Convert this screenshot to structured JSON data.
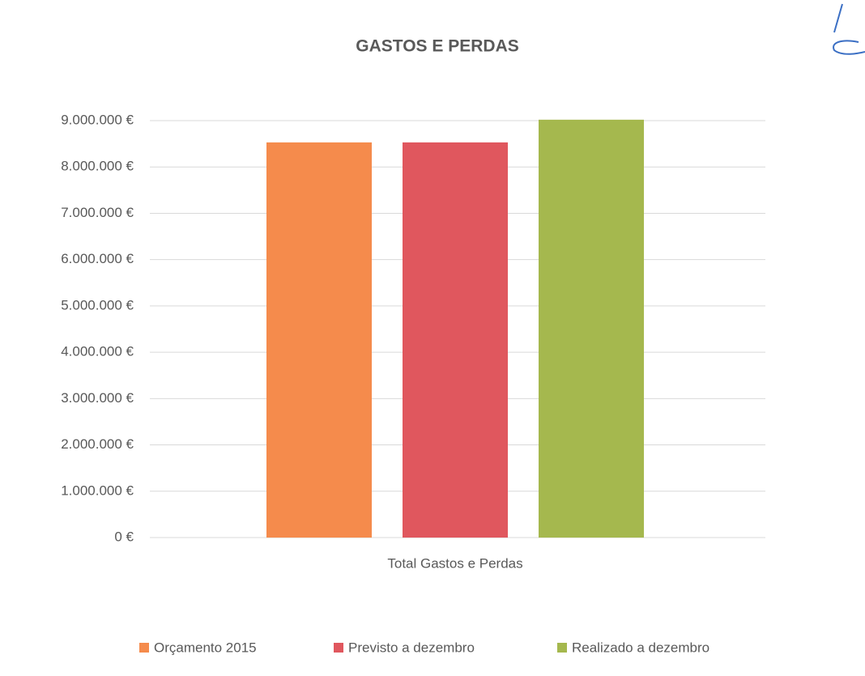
{
  "chart_data": {
    "type": "bar",
    "title": "GASTOS E PERDAS",
    "categories": [
      "Total Gastos e Perdas"
    ],
    "series": [
      {
        "name": "Orçamento 2015",
        "color": "#f58b4c",
        "values": [
          8530000
        ]
      },
      {
        "name": "Previsto a dezembro",
        "color": "#e0575e",
        "values": [
          8530000
        ]
      },
      {
        "name": "Realizado a dezembro",
        "color": "#a5b84e",
        "values": [
          9020000
        ]
      }
    ],
    "ylim": [
      0,
      9000000
    ],
    "yticks": [
      {
        "value": 0,
        "label": "0 €"
      },
      {
        "value": 1000000,
        "label": "1.000.000 €"
      },
      {
        "value": 2000000,
        "label": "2.000.000 €"
      },
      {
        "value": 3000000,
        "label": "3.000.000 €"
      },
      {
        "value": 4000000,
        "label": "4.000.000 €"
      },
      {
        "value": 5000000,
        "label": "5.000.000 €"
      },
      {
        "value": 6000000,
        "label": "6.000.000 €"
      },
      {
        "value": 7000000,
        "label": "7.000.000 €"
      },
      {
        "value": 8000000,
        "label": "8.000.000 €"
      },
      {
        "value": 9000000,
        "label": "9.000.000 €"
      }
    ],
    "grid": true,
    "legend": "bottom"
  }
}
